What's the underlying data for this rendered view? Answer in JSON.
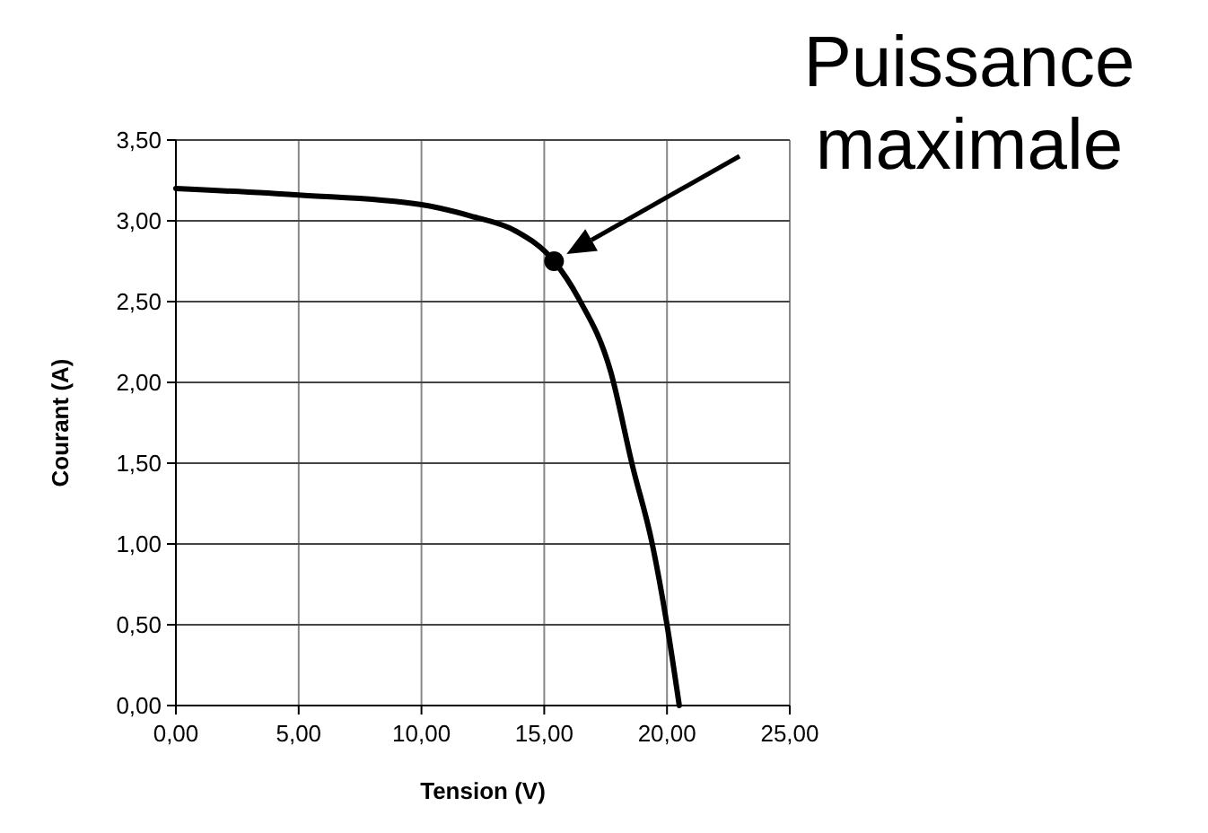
{
  "chart_data": {
    "type": "line",
    "xlabel": "Tension (V)",
    "ylabel": "Courant (A)",
    "x": [
      0,
      5,
      10,
      12,
      13.8,
      15.4,
      16.4,
      17.7,
      18.6,
      19.4,
      20,
      20.5
    ],
    "series": [
      {
        "color": "#000000",
        "values": [
          3.2,
          3.16,
          3.1,
          3.03,
          2.94,
          2.75,
          2.52,
          2.07,
          1.48,
          1,
          0.5,
          0
        ]
      },
      {
        "type": "scatter",
        "color": "#000000",
        "x": [
          15.4
        ],
        "values": [
          2.75
        ],
        "marker": "circle"
      }
    ],
    "xlim": [
      0,
      25
    ],
    "ylim": [
      0,
      3.5
    ],
    "xticks": [
      {
        "value": 0,
        "label": "0,00"
      },
      {
        "value": 5,
        "label": "5,00"
      },
      {
        "value": 10,
        "label": "10,00"
      },
      {
        "value": 15,
        "label": "15,00"
      },
      {
        "value": 20,
        "label": "20,00"
      },
      {
        "value": 25,
        "label": "25,00"
      }
    ],
    "yticks": [
      {
        "value": 0,
        "label": "0,00"
      },
      {
        "value": 0.5,
        "label": "0,50"
      },
      {
        "value": 1,
        "label": "1,00"
      },
      {
        "value": 1.5,
        "label": "1,50"
      },
      {
        "value": 2,
        "label": "2,00"
      },
      {
        "value": 2.5,
        "label": "2,50"
      },
      {
        "value": 3,
        "label": "3,00"
      },
      {
        "value": 3.5,
        "label": "3,50"
      }
    ],
    "grid": true,
    "marker": "none",
    "line_style": "solid",
    "annotations": [
      "Puissance\nmaximale"
    ]
  }
}
